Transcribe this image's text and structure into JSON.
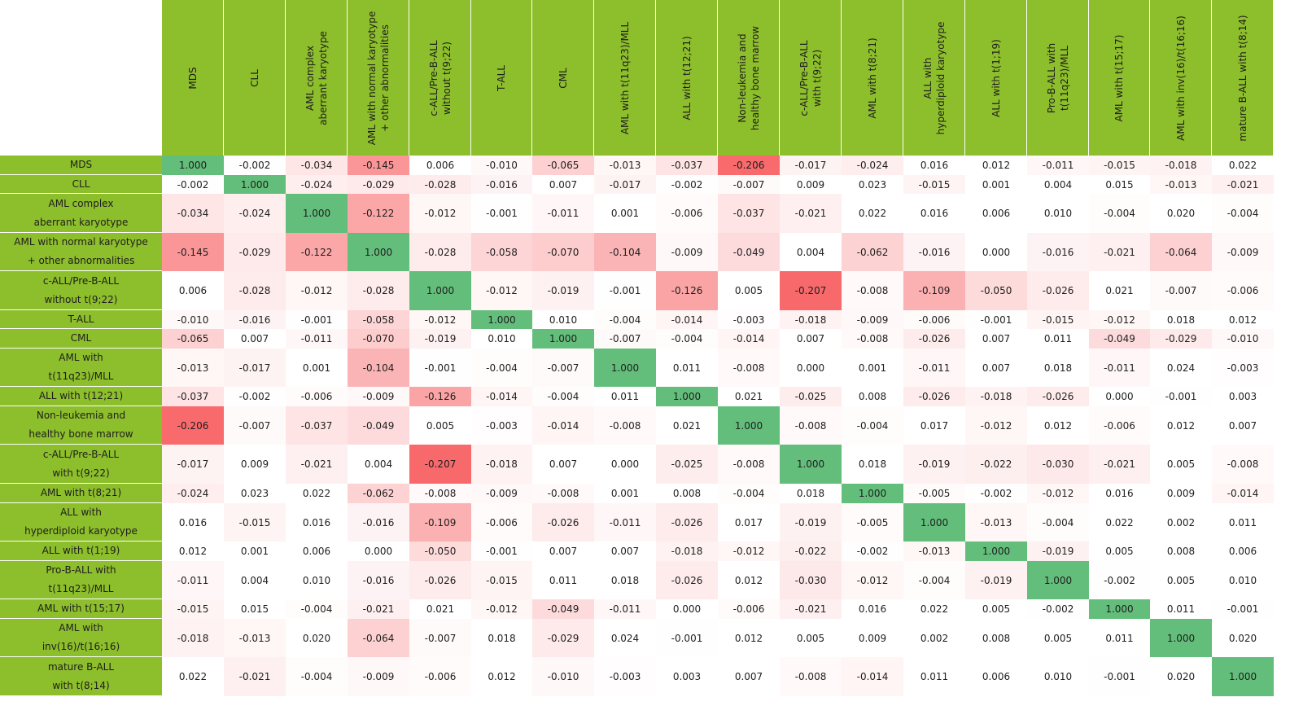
{
  "colors": {
    "header": "#8dbe2b",
    "diagonal": "#63be7b",
    "negative_max": "#f8696b",
    "neutral": "#ffffff",
    "positive_max": "#63be7b"
  },
  "chart_data": {
    "type": "heatmap",
    "col_labels": [
      [
        "MDS"
      ],
      [
        "CLL"
      ],
      [
        "AML complex",
        "aberrant karyotype"
      ],
      [
        "AML with normal karyotype",
        "+ other abnormalities"
      ],
      [
        "c-ALL/Pre-B-ALL",
        "without t(9;22)"
      ],
      [
        "T-ALL"
      ],
      [
        "CML"
      ],
      [
        "AML with t(11q23)/MLL"
      ],
      [
        "ALL with t(12;21)"
      ],
      [
        "Non-leukemia and",
        "healthy bone marrow"
      ],
      [
        "c-ALL/Pre-B-ALL",
        "with t(9;22)"
      ],
      [
        "AML with t(8;21)"
      ],
      [
        "ALL with",
        "hyperdiploid karyotype"
      ],
      [
        "ALL with t(1;19)"
      ],
      [
        "Pro-B-ALL with",
        "t(11q23)/MLL"
      ],
      [
        "AML with t(15;17)"
      ],
      [
        "AML with inv(16)/t(16;16)"
      ],
      [
        "mature B-ALL with t(8;14)"
      ]
    ],
    "row_labels": [
      [
        "MDS"
      ],
      [
        "CLL"
      ],
      [
        "AML complex",
        "aberrant karyotype"
      ],
      [
        "AML with normal karyotype",
        "+ other abnormalities"
      ],
      [
        "c-ALL/Pre-B-ALL",
        "without t(9;22)"
      ],
      [
        "T-ALL"
      ],
      [
        "CML"
      ],
      [
        "AML with",
        "t(11q23)/MLL"
      ],
      [
        "ALL with t(12;21)"
      ],
      [
        "Non-leukemia and",
        "healthy bone marrow"
      ],
      [
        "c-ALL/Pre-B-ALL",
        "with t(9;22)"
      ],
      [
        "AML with t(8;21)"
      ],
      [
        "ALL with",
        "hyperdiploid karyotype"
      ],
      [
        "ALL with t(1;19)"
      ],
      [
        "Pro-B-ALL with",
        "t(11q23)/MLL"
      ],
      [
        "AML with t(15;17)"
      ],
      [
        "AML with",
        "inv(16)/t(16;16)"
      ],
      [
        "mature B-ALL",
        "with t(8;14)"
      ]
    ],
    "values": [
      [
        "1.000",
        "-0.002",
        "-0.034",
        "-0.145",
        "0.006",
        "-0.010",
        "-0.065",
        "-0.013",
        "-0.037",
        "-0.206",
        "-0.017",
        "-0.024",
        "0.016",
        "0.012",
        "-0.011",
        "-0.015",
        "-0.018",
        "0.022"
      ],
      [
        "-0.002",
        "1.000",
        "-0.024",
        "-0.029",
        "-0.028",
        "-0.016",
        "0.007",
        "-0.017",
        "-0.002",
        "-0.007",
        "0.009",
        "0.023",
        "-0.015",
        "0.001",
        "0.004",
        "0.015",
        "-0.013",
        "-0.021"
      ],
      [
        "-0.034",
        "-0.024",
        "1.000",
        "-0.122",
        "-0.012",
        "-0.001",
        "-0.011",
        "0.001",
        "-0.006",
        "-0.037",
        "-0.021",
        "0.022",
        "0.016",
        "0.006",
        "0.010",
        "-0.004",
        "0.020",
        "-0.004"
      ],
      [
        "-0.145",
        "-0.029",
        "-0.122",
        "1.000",
        "-0.028",
        "-0.058",
        "-0.070",
        "-0.104",
        "-0.009",
        "-0.049",
        "0.004",
        "-0.062",
        "-0.016",
        "0.000",
        "-0.016",
        "-0.021",
        "-0.064",
        "-0.009"
      ],
      [
        "0.006",
        "-0.028",
        "-0.012",
        "-0.028",
        "1.000",
        "-0.012",
        "-0.019",
        "-0.001",
        "-0.126",
        "0.005",
        "-0.207",
        "-0.008",
        "-0.109",
        "-0.050",
        "-0.026",
        "0.021",
        "-0.007",
        "-0.006"
      ],
      [
        "-0.010",
        "-0.016",
        "-0.001",
        "-0.058",
        "-0.012",
        "1.000",
        "0.010",
        "-0.004",
        "-0.014",
        "-0.003",
        "-0.018",
        "-0.009",
        "-0.006",
        "-0.001",
        "-0.015",
        "-0.012",
        "0.018",
        "0.012"
      ],
      [
        "-0.065",
        "0.007",
        "-0.011",
        "-0.070",
        "-0.019",
        "0.010",
        "1.000",
        "-0.007",
        "-0.004",
        "-0.014",
        "0.007",
        "-0.008",
        "-0.026",
        "0.007",
        "0.011",
        "-0.049",
        "-0.029",
        "-0.010"
      ],
      [
        "-0.013",
        "-0.017",
        "0.001",
        "-0.104",
        "-0.001",
        "-0.004",
        "-0.007",
        "1.000",
        "0.011",
        "-0.008",
        "0.000",
        "0.001",
        "-0.011",
        "0.007",
        "0.018",
        "-0.011",
        "0.024",
        "-0.003"
      ],
      [
        "-0.037",
        "-0.002",
        "-0.006",
        "-0.009",
        "-0.126",
        "-0.014",
        "-0.004",
        "0.011",
        "1.000",
        "0.021",
        "-0.025",
        "0.008",
        "-0.026",
        "-0.018",
        "-0.026",
        "0.000",
        "-0.001",
        "0.003"
      ],
      [
        "-0.206",
        "-0.007",
        "-0.037",
        "-0.049",
        "0.005",
        "-0.003",
        "-0.014",
        "-0.008",
        "0.021",
        "1.000",
        "-0.008",
        "-0.004",
        "0.017",
        "-0.012",
        "0.012",
        "-0.006",
        "0.012",
        "0.007"
      ],
      [
        "-0.017",
        "0.009",
        "-0.021",
        "0.004",
        "-0.207",
        "-0.018",
        "0.007",
        "0.000",
        "-0.025",
        "-0.008",
        "1.000",
        "0.018",
        "-0.019",
        "-0.022",
        "-0.030",
        "-0.021",
        "0.005",
        "-0.008"
      ],
      [
        "-0.024",
        "0.023",
        "0.022",
        "-0.062",
        "-0.008",
        "-0.009",
        "-0.008",
        "0.001",
        "0.008",
        "-0.004",
        "0.018",
        "1.000",
        "-0.005",
        "-0.002",
        "-0.012",
        "0.016",
        "0.009",
        "-0.014"
      ],
      [
        "0.016",
        "-0.015",
        "0.016",
        "-0.016",
        "-0.109",
        "-0.006",
        "-0.026",
        "-0.011",
        "-0.026",
        "0.017",
        "-0.019",
        "-0.005",
        "1.000",
        "-0.013",
        "-0.004",
        "0.022",
        "0.002",
        "0.011"
      ],
      [
        "0.012",
        "0.001",
        "0.006",
        "0.000",
        "-0.050",
        "-0.001",
        "0.007",
        "0.007",
        "-0.018",
        "-0.012",
        "-0.022",
        "-0.002",
        "-0.013",
        "1.000",
        "-0.019",
        "0.005",
        "0.008",
        "0.006"
      ],
      [
        "-0.011",
        "0.004",
        "0.010",
        "-0.016",
        "-0.026",
        "-0.015",
        "0.011",
        "0.018",
        "-0.026",
        "0.012",
        "-0.030",
        "-0.012",
        "-0.004",
        "-0.019",
        "1.000",
        "-0.002",
        "0.005",
        "0.010"
      ],
      [
        "-0.015",
        "0.015",
        "-0.004",
        "-0.021",
        "0.021",
        "-0.012",
        "-0.049",
        "-0.011",
        "0.000",
        "-0.006",
        "-0.021",
        "0.016",
        "0.022",
        "0.005",
        "-0.002",
        "1.000",
        "0.011",
        "-0.001"
      ],
      [
        "-0.018",
        "-0.013",
        "0.020",
        "-0.064",
        "-0.007",
        "0.018",
        "-0.029",
        "0.024",
        "-0.001",
        "0.012",
        "0.005",
        "0.009",
        "0.002",
        "0.008",
        "0.005",
        "0.011",
        "1.000",
        "0.020"
      ],
      [
        "0.022",
        "-0.021",
        "-0.004",
        "-0.009",
        "-0.006",
        "0.012",
        "-0.010",
        "-0.003",
        "0.003",
        "0.007",
        "-0.008",
        "-0.014",
        "0.011",
        "0.006",
        "0.010",
        "-0.001",
        "0.020",
        "1.000"
      ]
    ]
  }
}
